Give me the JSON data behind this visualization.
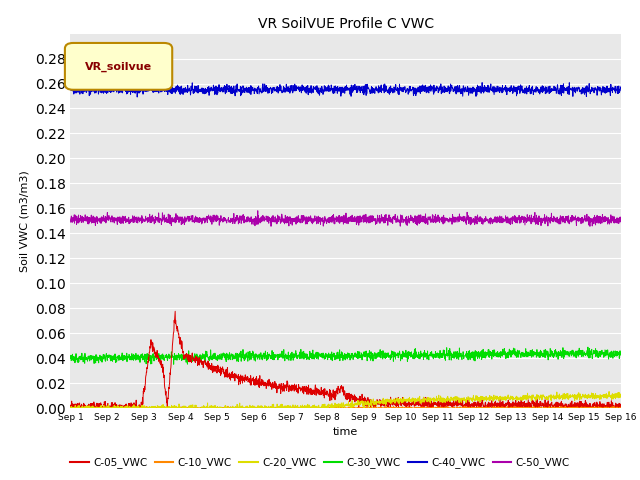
{
  "title": "VR SoilVUE Profile C VWC",
  "ylabel": "Soil VWC (m3/m3)",
  "xlabel": "time",
  "ylim": [
    0.0,
    0.3
  ],
  "yticks": [
    0.0,
    0.02,
    0.04,
    0.06,
    0.08,
    0.1,
    0.12,
    0.14,
    0.16,
    0.18,
    0.2,
    0.22,
    0.24,
    0.26,
    0.28
  ],
  "bg_color": "#e8e8e8",
  "legend_label": "VR_soilvue",
  "legend_box_color": "#ffffcc",
  "legend_box_border": "#bb8800",
  "series": {
    "C-05_VWC": {
      "color": "#dd0000"
    },
    "C-10_VWC": {
      "color": "#ff8800"
    },
    "C-20_VWC": {
      "color": "#dddd00"
    },
    "C-30_VWC": {
      "color": "#00dd00"
    },
    "C-40_VWC": {
      "color": "#0000cc"
    },
    "C-50_VWC": {
      "color": "#aa00aa"
    }
  }
}
